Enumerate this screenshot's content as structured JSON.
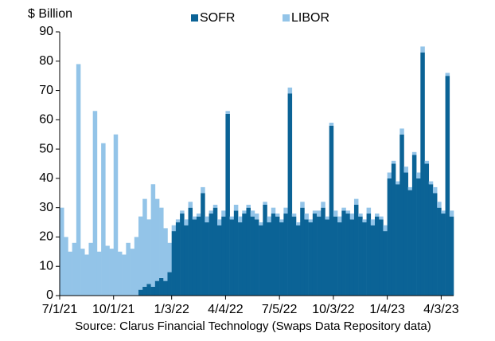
{
  "chart_data": {
    "type": "bar",
    "stacked": true,
    "y_label": "$ Billion",
    "source": "Source: Clarus Financial Technology (Swaps Data Repository data)",
    "categories": [
      "7/1/21",
      null,
      null,
      null,
      null,
      null,
      null,
      null,
      null,
      null,
      null,
      null,
      null,
      "10/1/21",
      null,
      null,
      null,
      null,
      null,
      null,
      null,
      null,
      null,
      null,
      null,
      null,
      null,
      "1/3/22",
      null,
      null,
      null,
      null,
      null,
      null,
      null,
      null,
      null,
      null,
      null,
      null,
      "4/4/22",
      null,
      null,
      null,
      null,
      null,
      null,
      null,
      null,
      null,
      null,
      null,
      null,
      "7/5/22",
      null,
      null,
      null,
      null,
      null,
      null,
      null,
      null,
      null,
      null,
      null,
      null,
      "10/3/22",
      null,
      null,
      null,
      null,
      null,
      null,
      null,
      null,
      null,
      null,
      null,
      null,
      "1/4/23",
      null,
      null,
      null,
      null,
      null,
      null,
      null,
      null,
      null,
      null,
      null,
      null,
      "4/3/23",
      null,
      null
    ],
    "series": [
      {
        "name": "SOFR",
        "color": "#0b6396",
        "values": [
          0,
          0,
          0,
          0,
          0,
          0,
          0,
          0,
          0,
          0,
          0,
          0,
          0,
          0,
          0,
          0,
          0,
          0,
          0,
          2,
          3,
          4,
          3,
          5,
          6,
          5,
          8,
          22,
          25,
          28,
          24,
          30,
          26,
          27,
          35,
          25,
          28,
          30,
          24,
          27,
          62,
          26,
          29,
          25,
          28,
          30,
          27,
          26,
          24,
          31,
          25,
          28,
          27,
          25,
          28,
          69,
          27,
          24,
          30,
          26,
          25,
          28,
          27,
          30,
          26,
          58,
          27,
          25,
          29,
          28,
          26,
          31,
          27,
          25,
          28,
          24,
          27,
          26,
          22,
          40,
          45,
          38,
          55,
          42,
          36,
          48,
          40,
          83,
          45,
          38,
          35,
          30,
          28,
          75,
          27
        ]
      },
      {
        "name": "LIBOR",
        "color": "#93c4e8",
        "values": [
          30,
          20,
          15,
          18,
          79,
          16,
          14,
          18,
          63,
          15,
          52,
          17,
          16,
          55,
          15,
          14,
          18,
          16,
          20,
          25,
          30,
          22,
          35,
          28,
          24,
          18,
          10,
          2,
          1,
          1,
          2,
          2,
          1,
          1,
          2,
          2,
          1,
          1,
          2,
          2,
          1,
          1,
          2,
          2,
          1,
          1,
          2,
          2,
          1,
          1,
          2,
          2,
          1,
          1,
          2,
          2,
          1,
          1,
          2,
          2,
          1,
          1,
          2,
          2,
          1,
          1,
          2,
          2,
          1,
          1,
          2,
          2,
          1,
          1,
          2,
          2,
          1,
          1,
          2,
          2,
          1,
          1,
          2,
          2,
          1,
          1,
          2,
          2,
          1,
          1,
          2,
          2,
          1,
          1,
          2
        ]
      }
    ],
    "ylim": [
      0,
      90
    ],
    "yticks": [
      0,
      10,
      20,
      30,
      40,
      50,
      60,
      70,
      80,
      90
    ],
    "legend": "top"
  }
}
